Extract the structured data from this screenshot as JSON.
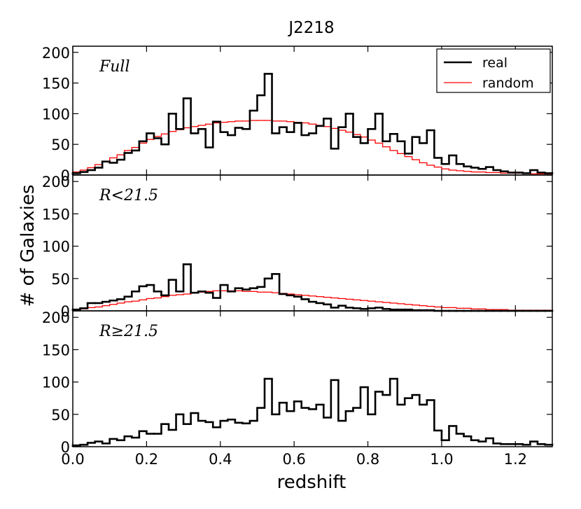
{
  "chart_data": {
    "type": "histogram",
    "title": "J2218",
    "xlabel": "redshift",
    "ylabel": "# of Galaxies",
    "xlim": [
      0.0,
      1.3
    ],
    "ylim": [
      0,
      210
    ],
    "x_ticks": [
      "0.0",
      "0.2",
      "0.4",
      "0.6",
      "0.8",
      "1.0",
      "1.2"
    ],
    "y_ticks": [
      "0",
      "50",
      "100",
      "150",
      "200"
    ],
    "bin_width": 0.02,
    "legend": {
      "position": "top-right",
      "entries": [
        {
          "name": "real",
          "color": "#000000"
        },
        {
          "name": "random",
          "color": "#ff0000"
        }
      ]
    },
    "panels": [
      {
        "label": "Full",
        "real": [
          3,
          5,
          8,
          12,
          22,
          20,
          25,
          36,
          40,
          55,
          68,
          60,
          50,
          100,
          75,
          125,
          68,
          75,
          45,
          87,
          70,
          65,
          77,
          75,
          105,
          130,
          165,
          68,
          78,
          70,
          85,
          65,
          68,
          80,
          92,
          43,
          78,
          100,
          62,
          52,
          75,
          100,
          55,
          67,
          55,
          35,
          62,
          52,
          73,
          28,
          18,
          32,
          18,
          14,
          12,
          10,
          13,
          8,
          6,
          4,
          4,
          3,
          8,
          4,
          3
        ],
        "random": [
          5,
          8,
          12,
          17,
          22,
          28,
          33,
          40,
          45,
          52,
          58,
          63,
          67,
          71,
          74,
          77,
          79,
          81,
          83,
          85,
          86,
          87,
          88,
          88,
          89,
          89,
          89,
          88,
          88,
          87,
          86,
          85,
          83,
          81,
          79,
          76,
          73,
          70,
          66,
          62,
          57,
          52,
          46,
          40,
          35,
          30,
          25,
          20,
          16,
          13,
          10,
          8,
          7,
          6,
          5,
          5,
          4,
          4,
          3,
          3,
          3,
          3,
          2,
          2,
          2
        ]
      },
      {
        "label": "R<21.5",
        "real": [
          2,
          4,
          12,
          12,
          14,
          16,
          18,
          22,
          30,
          38,
          40,
          30,
          24,
          48,
          30,
          72,
          28,
          30,
          28,
          20,
          40,
          30,
          35,
          33,
          35,
          37,
          50,
          57,
          26,
          24,
          22,
          18,
          14,
          12,
          10,
          5,
          8,
          5,
          4,
          3,
          4,
          5,
          3,
          2,
          2,
          2,
          1,
          1,
          1,
          0,
          0,
          0,
          0,
          0,
          0,
          0,
          0,
          0,
          0,
          0,
          0,
          0,
          0,
          0,
          0
        ],
        "random": [
          2,
          3,
          5,
          6,
          8,
          10,
          12,
          14,
          15,
          17,
          19,
          20,
          22,
          24,
          25,
          26,
          28,
          29,
          30,
          31,
          31,
          31,
          31,
          30,
          30,
          29,
          29,
          28,
          27,
          26,
          25,
          24,
          23,
          22,
          21,
          20,
          19,
          18,
          17,
          16,
          15,
          14,
          13,
          12,
          11,
          10,
          9,
          8,
          7,
          6,
          5,
          5,
          4,
          4,
          3,
          3,
          2,
          2,
          2,
          1,
          1,
          1,
          1,
          1,
          1
        ]
      },
      {
        "label": "R≥21.5",
        "real": [
          2,
          3,
          6,
          8,
          5,
          12,
          10,
          16,
          14,
          24,
          20,
          20,
          35,
          26,
          50,
          35,
          52,
          40,
          38,
          30,
          40,
          42,
          37,
          36,
          40,
          60,
          105,
          50,
          68,
          55,
          70,
          60,
          58,
          65,
          45,
          103,
          40,
          55,
          60,
          92,
          50,
          85,
          80,
          105,
          65,
          75,
          80,
          65,
          72,
          25,
          10,
          32,
          20,
          16,
          10,
          8,
          13,
          5,
          4,
          4,
          4,
          3,
          8,
          4,
          3
        ]
      }
    ]
  }
}
